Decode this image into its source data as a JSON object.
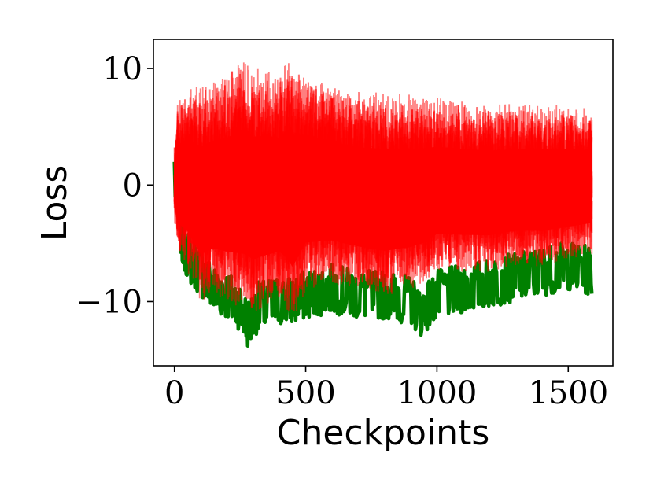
{
  "chart_data": {
    "type": "line",
    "title": "",
    "xlabel": "Checkpoints",
    "ylabel": "Loss",
    "xlim": [
      -80,
      1670
    ],
    "ylim": [
      -15.5,
      12.5
    ],
    "x_ticks": [
      0,
      500,
      1000,
      1500
    ],
    "x_tick_labels": [
      "0",
      "500",
      "1000",
      "1500"
    ],
    "y_ticks": [
      10,
      0,
      -10
    ],
    "y_tick_labels": [
      "10",
      "0",
      "−10"
    ],
    "grid": false,
    "legend": "none",
    "x_range": [
      0,
      1590
    ],
    "series": [
      {
        "color": "#008000",
        "role": "lower-envelope",
        "envelope": [
          [
            0,
            -1.0
          ],
          [
            10,
            -3.5
          ],
          [
            30,
            -7.0
          ],
          [
            60,
            -8.5
          ],
          [
            100,
            -9.5
          ],
          [
            150,
            -11.0
          ],
          [
            200,
            -11.5
          ],
          [
            250,
            -12.5
          ],
          [
            280,
            -14.0
          ],
          [
            320,
            -12.5
          ],
          [
            400,
            -12.0
          ],
          [
            450,
            -12.0
          ],
          [
            500,
            -11.5
          ],
          [
            600,
            -11.0
          ],
          [
            700,
            -11.5
          ],
          [
            800,
            -11.5
          ],
          [
            900,
            -12.0
          ],
          [
            940,
            -13.0
          ],
          [
            1000,
            -11.5
          ],
          [
            1100,
            -11.0
          ],
          [
            1200,
            -10.5
          ],
          [
            1300,
            -10.0
          ],
          [
            1400,
            -9.5
          ],
          [
            1500,
            -9.0
          ],
          [
            1590,
            -9.5
          ]
        ]
      },
      {
        "color": "#ff0000",
        "role": "band",
        "upper": [
          [
            0,
            3.5
          ],
          [
            10,
            7.0
          ],
          [
            50,
            8.5
          ],
          [
            100,
            8.5
          ],
          [
            150,
            9.0
          ],
          [
            200,
            9.5
          ],
          [
            270,
            11.0
          ],
          [
            300,
            10.0
          ],
          [
            350,
            10.0
          ],
          [
            400,
            9.5
          ],
          [
            430,
            11.0
          ],
          [
            500,
            9.5
          ],
          [
            600,
            8.5
          ],
          [
            700,
            8.0
          ],
          [
            800,
            8.0
          ],
          [
            900,
            7.8
          ],
          [
            1000,
            7.5
          ],
          [
            1100,
            7.2
          ],
          [
            1200,
            7.0
          ],
          [
            1300,
            7.0
          ],
          [
            1400,
            7.0
          ],
          [
            1500,
            6.8
          ],
          [
            1590,
            6.5
          ]
        ],
        "lower": [
          [
            0,
            -3.0
          ],
          [
            10,
            -6.0
          ],
          [
            50,
            -7.5
          ],
          [
            100,
            -10.0
          ],
          [
            150,
            -9.5
          ],
          [
            200,
            -10.0
          ],
          [
            250,
            -10.5
          ],
          [
            300,
            -11.0
          ],
          [
            400,
            -10.0
          ],
          [
            450,
            -12.0
          ],
          [
            500,
            -9.0
          ],
          [
            600,
            -8.5
          ],
          [
            700,
            -9.0
          ],
          [
            800,
            -9.5
          ],
          [
            900,
            -9.0
          ],
          [
            950,
            -8.5
          ],
          [
            1000,
            -7.5
          ],
          [
            1100,
            -7.5
          ],
          [
            1200,
            -7.5
          ],
          [
            1300,
            -7.0
          ],
          [
            1400,
            -7.0
          ],
          [
            1500,
            -6.5
          ],
          [
            1590,
            -6.0
          ]
        ]
      }
    ]
  }
}
